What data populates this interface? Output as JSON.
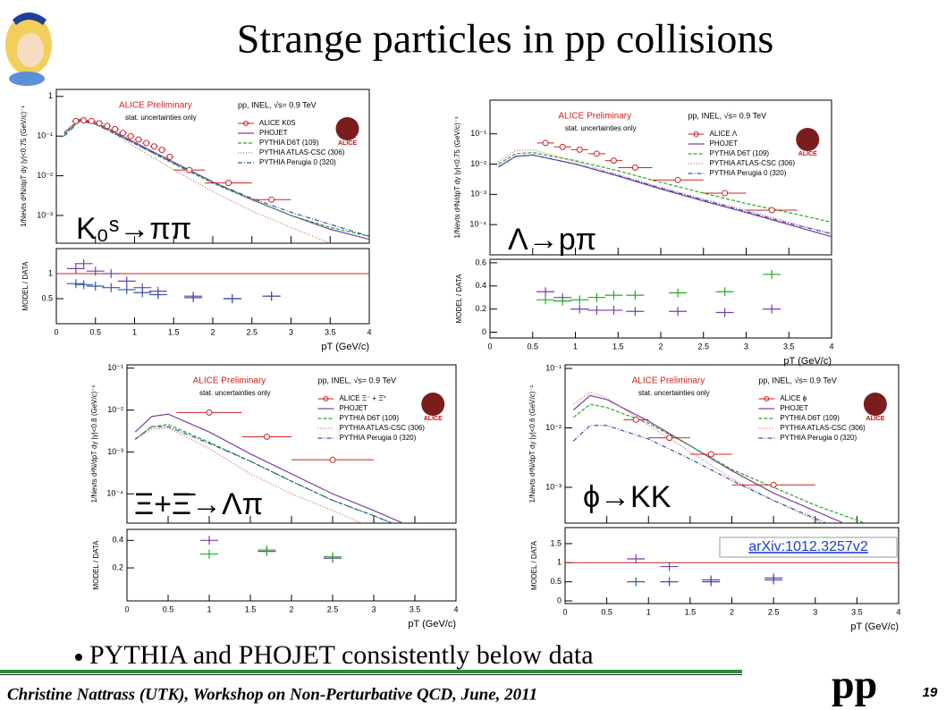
{
  "title": "Strange particles in pp collisions",
  "bullet": "PYTHIA and PHOJET consistently below data",
  "footer": "Christine Nattrass (UTK), Workshop on Non-Perturbative QCD, June, 2011",
  "system": "pp",
  "page": 19,
  "link": "arXiv:1012.3257v2",
  "panels": [
    {
      "label": "K₀ˢ→ππ",
      "preliminary": "ALICE Preliminary",
      "note": "stat. uncertainties only",
      "collision": "pp, INEL, √s= 0.9 TeV",
      "logo": "ALICE",
      "ytitle": "1/Nevts d²N/dpT dy |y|<0.75 (GeV/c)⁻¹",
      "ratio_title": "MODEL / DATA",
      "xtitle": "pT (GeV/c)",
      "xlim": [
        0,
        4
      ],
      "xticks": [
        0,
        0.5,
        1,
        1.5,
        2,
        2.5,
        3,
        3.5,
        4
      ],
      "ylim": [
        0.0002,
        1.5
      ],
      "yticks": [
        {
          "value": 1,
          "label": "1"
        },
        {
          "value": 0.1,
          "label": "10⁻¹"
        },
        {
          "value": 0.01,
          "label": "10⁻²"
        },
        {
          "value": 0.001,
          "label": "10⁻³"
        }
      ],
      "data": {
        "name": "ALICE K0S",
        "color": "#cc2222",
        "x": [
          0.25,
          0.35,
          0.45,
          0.55,
          0.65,
          0.75,
          0.85,
          0.95,
          1.05,
          1.15,
          1.25,
          1.35,
          1.45,
          1.7,
          2.2,
          2.75
        ],
        "xerr": [
          0.05,
          0.05,
          0.05,
          0.05,
          0.05,
          0.05,
          0.05,
          0.05,
          0.05,
          0.05,
          0.05,
          0.05,
          0.05,
          0.2,
          0.3,
          0.25
        ],
        "values": [
          0.24,
          0.25,
          0.24,
          0.21,
          0.18,
          0.15,
          0.12,
          0.1,
          0.082,
          0.067,
          0.055,
          0.045,
          0.03,
          0.014,
          0.0066,
          0.0025
        ]
      },
      "curve_x": [
        0.1,
        0.3,
        0.5,
        1,
        1.5,
        2,
        2.5,
        3,
        3.5,
        4
      ],
      "series": [
        {
          "name": "PHOJET",
          "color": "#7a3fa8",
          "dash": "none",
          "values": [
            0.12,
            0.26,
            0.22,
            0.07,
            0.022,
            0.007,
            0.0025,
            0.001,
            0.00045,
            0.00025
          ]
        },
        {
          "name": "PYTHIA D6T (109)",
          "color": "#22aa22",
          "dash": "4,2",
          "values": [
            0.11,
            0.25,
            0.21,
            0.065,
            0.02,
            0.0065,
            0.0025,
            0.001,
            0.0005,
            0.0003
          ]
        },
        {
          "name": "PYTHIA ATLAS-CSC (306)",
          "color": "#d06060",
          "dash": "1,2",
          "values": [
            0.13,
            0.28,
            0.22,
            0.055,
            0.014,
            0.004,
            0.0013,
            0.0005,
            0.0002,
            0.0001
          ]
        },
        {
          "name": "PYTHIA Perugia 0 (320)",
          "color": "#3355aa",
          "dash": "5,2,1,2",
          "values": [
            0.1,
            0.24,
            0.2,
            0.065,
            0.021,
            0.007,
            0.0027,
            0.0012,
            0.0006,
            0.0003
          ]
        }
      ],
      "ratio": {
        "ylim": [
          0,
          1.5
        ],
        "yticks": [
          0.5,
          1
        ],
        "reference": 1,
        "x": [
          0.25,
          0.35,
          0.5,
          0.7,
          0.9,
          1.1,
          1.3,
          1.75,
          2.25,
          2.75
        ],
        "series": [
          {
            "color": "#7a3fa8",
            "values": [
              1.1,
              1.2,
              1.05,
              1.0,
              0.85,
              0.72,
              0.65,
              0.55,
              0.5,
              0.55
            ]
          },
          {
            "color": "#3355aa",
            "values": [
              0.8,
              0.78,
              0.75,
              0.72,
              0.68,
              0.62,
              0.58,
              0.52,
              0.5,
              0.55
            ]
          }
        ]
      }
    },
    {
      "label": "Λ→pπ",
      "preliminary": "ALICE Preliminary",
      "note": "stat. uncertainties only",
      "collision": "pp, INEL, √s= 0.9 TeV",
      "logo": "ALICE",
      "ytitle": "1/Nevts d²N/dpT dy |y|<0.75 (GeV/c)⁻¹",
      "ratio_title": "MODEL / DATA",
      "xtitle": "pT (GeV/c)",
      "xlim": [
        0,
        4
      ],
      "xticks": [
        0,
        0.5,
        1,
        1.5,
        2,
        2.5,
        3,
        3.5,
        4
      ],
      "ylim": [
        1e-05,
        1.3
      ],
      "yticks": [
        {
          "value": 0.1,
          "label": "10⁻¹"
        },
        {
          "value": 0.01,
          "label": "10⁻²"
        },
        {
          "value": 0.001,
          "label": "10⁻³"
        },
        {
          "value": 0.0001,
          "label": "10⁻⁴"
        }
      ],
      "data": {
        "name": "ALICE Λ",
        "color": "#cc2222",
        "x": [
          0.65,
          0.85,
          1.05,
          1.25,
          1.45,
          1.7,
          2.2,
          2.75,
          3.3
        ],
        "xerr": [
          0.1,
          0.1,
          0.1,
          0.1,
          0.1,
          0.2,
          0.3,
          0.25,
          0.3
        ],
        "values": [
          0.05,
          0.037,
          0.03,
          0.022,
          0.013,
          0.0076,
          0.003,
          0.0011,
          0.0003
        ]
      },
      "curve_x": [
        0.1,
        0.3,
        0.5,
        1,
        1.5,
        2,
        2.5,
        3,
        3.5,
        4
      ],
      "series": [
        {
          "name": "PHOJET",
          "color": "#7a3fa8",
          "dash": "none",
          "values": [
            0.008,
            0.018,
            0.02,
            0.01,
            0.004,
            0.0015,
            0.0006,
            0.00025,
            0.0001,
            4e-05
          ]
        },
        {
          "name": "PYTHIA D6T (109)",
          "color": "#22aa22",
          "dash": "4,2",
          "values": [
            0.01,
            0.022,
            0.024,
            0.013,
            0.006,
            0.0025,
            0.0011,
            0.0005,
            0.00025,
            0.00012
          ]
        },
        {
          "name": "PYTHIA ATLAS-CSC (306)",
          "color": "#d06060",
          "dash": "1,2",
          "values": [
            0.012,
            0.028,
            0.03,
            0.012,
            0.0045,
            0.0017,
            0.0007,
            0.0003,
            0.00012,
            5e-05
          ]
        },
        {
          "name": "PYTHIA Perugia 0 (320)",
          "color": "#3355aa",
          "dash": "5,2,1,2",
          "values": [
            0.008,
            0.018,
            0.02,
            0.01,
            0.0042,
            0.0016,
            0.00065,
            0.00027,
            0.00011,
            5e-05
          ]
        }
      ],
      "ratio": {
        "ylim": [
          -0.05,
          0.63
        ],
        "yticks": [
          0,
          0.2,
          0.4,
          0.6
        ],
        "x": [
          0.65,
          0.85,
          1.05,
          1.25,
          1.45,
          1.7,
          2.2,
          2.75,
          3.3
        ],
        "series": [
          {
            "color": "#7a3fa8",
            "values": [
              0.35,
              0.3,
              0.2,
              0.19,
              0.19,
              0.18,
              0.18,
              0.17,
              0.2
            ]
          },
          {
            "color": "#22aa22",
            "values": [
              0.28,
              0.27,
              0.28,
              0.3,
              0.32,
              0.32,
              0.34,
              0.35,
              0.5
            ]
          }
        ]
      }
    },
    {
      "label": "Ξ+Ξ̄→Λπ",
      "preliminary": "ALICE Preliminary",
      "note": "stat. uncertainties only",
      "collision": "pp, INEL, √s= 0.9 TeV",
      "logo": "ALICE",
      "ytitle": "1/Nevts d²N/dpT dy |y|<0.8 (GeV/c)⁻¹",
      "ratio_title": "MODEL / DATA",
      "xtitle": "pT (GeV/c)",
      "xlim": [
        0,
        4
      ],
      "xticks": [
        0,
        0.5,
        1,
        1.5,
        2,
        2.5,
        3,
        3.5,
        4
      ],
      "ylim": [
        2e-05,
        0.12
      ],
      "yticks": [
        {
          "value": 0.1,
          "label": "10⁻¹"
        },
        {
          "value": 0.01,
          "label": "10⁻²"
        },
        {
          "value": 0.001,
          "label": "10⁻³"
        },
        {
          "value": 0.0001,
          "label": "10⁻⁴"
        }
      ],
      "data": {
        "name": "ALICE Ξ⁻ + Ξ̄⁺",
        "color": "#cc2222",
        "x": [
          1,
          1.7,
          2.5
        ],
        "xerr": [
          0.4,
          0.3,
          0.5
        ],
        "values": [
          0.0087,
          0.0023,
          0.00065
        ]
      },
      "curve_x": [
        0.1,
        0.3,
        0.5,
        1,
        1.5,
        2,
        2.5,
        3,
        3.5,
        4
      ],
      "series": [
        {
          "name": "PHOJET",
          "color": "#7a3fa8",
          "dash": "none",
          "values": [
            0.003,
            0.007,
            0.008,
            0.003,
            0.0009,
            0.0003,
            0.0001,
            4e-05,
            1.5e-05,
            6e-06
          ]
        },
        {
          "name": "PYTHIA D6T (109)",
          "color": "#22aa22",
          "dash": "4,2",
          "values": [
            0.002,
            0.004,
            0.0045,
            0.0017,
            0.0006,
            0.0002,
            7e-05,
            3e-05,
            1.2e-05,
            5e-06
          ]
        },
        {
          "name": "PYTHIA ATLAS-CSC (306)",
          "color": "#d06060",
          "dash": "1,2",
          "values": [
            0.002,
            0.0035,
            0.0038,
            0.0012,
            0.0003,
            0.0001,
            4e-05,
            1.5e-05,
            6e-06,
            3e-06
          ]
        },
        {
          "name": "PYTHIA Perugia 0 (320)",
          "color": "#3355aa",
          "dash": "5,2,1,2",
          "values": [
            0.002,
            0.004,
            0.004,
            0.0016,
            0.0006,
            0.0002,
            7e-05,
            3e-05,
            1.2e-05,
            5e-06
          ]
        }
      ],
      "ratio": {
        "ylim": [
          -0.04,
          0.48
        ],
        "yticks": [
          0.2,
          0.4
        ],
        "x": [
          1,
          1.7,
          2.5
        ],
        "series": [
          {
            "color": "#7a3fa8",
            "values": [
              0.4,
              0.32,
              0.27
            ]
          },
          {
            "color": "#22aa22",
            "values": [
              0.3,
              0.33,
              0.28
            ]
          }
        ]
      }
    },
    {
      "label": "ϕ→KK",
      "preliminary": "ALICE Preliminary",
      "note": "stat. uncertainties only",
      "collision": "pp, INEL, √s= 0.9 TeV",
      "logo": "ALICE",
      "ytitle": "1/Nevts d²N/dpT dy |y|<0.6 (GeV/c)⁻¹",
      "ratio_title": "MODEL / DATA",
      "xtitle": "pT (GeV/c)",
      "xlim": [
        0,
        4
      ],
      "xticks": [
        0,
        0.5,
        1,
        1.5,
        2,
        2.5,
        3,
        3.5,
        4
      ],
      "ylim": [
        0.00025,
        0.115
      ],
      "yticks": [
        {
          "value": 0.1,
          "label": "10⁻¹"
        },
        {
          "value": 0.01,
          "label": "10⁻²"
        },
        {
          "value": 0.001,
          "label": "10⁻³"
        }
      ],
      "data": {
        "name": "ALICE ϕ",
        "color": "#cc2222",
        "x": [
          0.85,
          1.25,
          1.75,
          2.5
        ],
        "xerr": [
          0.15,
          0.25,
          0.25,
          0.5
        ],
        "values": [
          0.0137,
          0.0068,
          0.0036,
          0.0011
        ]
      },
      "curve_x": [
        0.1,
        0.3,
        0.5,
        1,
        1.5,
        2,
        2.5,
        3,
        3.5,
        4
      ],
      "series": [
        {
          "name": "PHOJET",
          "color": "#7a3fa8",
          "dash": "none",
          "values": [
            0.02,
            0.035,
            0.03,
            0.013,
            0.005,
            0.0019,
            0.0008,
            0.0004,
            0.0002,
            0.0001
          ]
        },
        {
          "name": "PYTHIA D6T (109)",
          "color": "#22aa22",
          "dash": "4,2",
          "values": [
            0.015,
            0.025,
            0.022,
            0.012,
            0.005,
            0.002,
            0.001,
            0.0005,
            0.00028,
            0.00015
          ]
        },
        {
          "name": "PYTHIA ATLAS-CSC (306)",
          "color": "#d06060",
          "dash": "1,2",
          "values": [
            0.025,
            0.04,
            0.032,
            0.011,
            0.004,
            0.0014,
            0.0006,
            0.00028,
            0.00013,
            6e-05
          ]
        },
        {
          "name": "PYTHIA Perugia 0 (320)",
          "color": "#3355aa",
          "dash": "5,2,1,2",
          "values": [
            0.006,
            0.011,
            0.011,
            0.0065,
            0.003,
            0.0013,
            0.0006,
            0.0003,
            0.00015,
            8e-05
          ]
        }
      ],
      "ratio": {
        "ylim": [
          -0.07,
          1.92
        ],
        "yticks": [
          0,
          0.5,
          1,
          1.5
        ],
        "reference": 1,
        "x": [
          0.85,
          1.25,
          1.75,
          2.5
        ],
        "series": [
          {
            "color": "#7a3fa8",
            "values": [
              1.1,
              0.9,
              0.55,
              0.6
            ]
          },
          {
            "color": "#3355aa",
            "values": [
              0.5,
              0.5,
              0.5,
              0.55
            ]
          }
        ]
      }
    }
  ]
}
